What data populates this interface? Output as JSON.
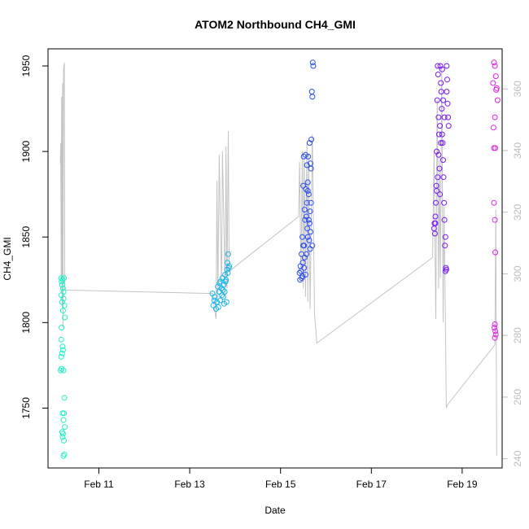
{
  "chart_data": {
    "type": "scatter",
    "title": "ATOM2 Northbound CH4_GMI",
    "xlabel": "Date",
    "ylabel": "CH4_GMI",
    "x_unit": "days since 2017-02-10",
    "xlim": [
      9.88,
      19.88
    ],
    "ylim": [
      1715,
      1960
    ],
    "x_ticks": [
      {
        "v": 11,
        "label": "Feb 11"
      },
      {
        "v": 13,
        "label": "Feb 13"
      },
      {
        "v": 15,
        "label": "Feb 15"
      },
      {
        "v": 17,
        "label": "Feb 17"
      },
      {
        "v": 19,
        "label": "Feb 19"
      }
    ],
    "y_ticks": [
      1750,
      1800,
      1850,
      1900,
      1950
    ],
    "y2lim": [
      237,
      373
    ],
    "y2_ticks": [
      240,
      260,
      280,
      300,
      320,
      340,
      360
    ],
    "grid": false,
    "series": [
      {
        "color": "#22f0c8",
        "points": [
          [
            10.17,
            1826
          ],
          [
            10.18,
            1824
          ],
          [
            10.19,
            1822
          ],
          [
            10.2,
            1825
          ],
          [
            10.21,
            1820
          ],
          [
            10.22,
            1818
          ],
          [
            10.23,
            1826
          ],
          [
            10.17,
            1816
          ],
          [
            10.19,
            1812
          ],
          [
            10.21,
            1807
          ],
          [
            10.22,
            1814
          ],
          [
            10.24,
            1810
          ],
          [
            10.25,
            1803
          ],
          [
            10.18,
            1797
          ],
          [
            10.17,
            1790
          ],
          [
            10.2,
            1786
          ],
          [
            10.19,
            1782
          ],
          [
            10.17,
            1780
          ],
          [
            10.21,
            1784
          ],
          [
            10.16,
            1772
          ],
          [
            10.18,
            1773
          ],
          [
            10.22,
            1772
          ],
          [
            10.24,
            1756
          ],
          [
            10.2,
            1747
          ],
          [
            10.23,
            1747
          ],
          [
            10.22,
            1743
          ],
          [
            10.25,
            1739
          ],
          [
            10.19,
            1736
          ],
          [
            10.21,
            1735
          ],
          [
            10.2,
            1733
          ],
          [
            10.23,
            1731
          ],
          [
            10.22,
            1722
          ],
          [
            10.24,
            1723
          ]
        ]
      },
      {
        "color": "#1ab3ea",
        "points": [
          [
            13.5,
            1817
          ],
          [
            13.55,
            1815
          ],
          [
            13.6,
            1812
          ],
          [
            13.62,
            1821
          ],
          [
            13.65,
            1818
          ],
          [
            13.68,
            1824
          ],
          [
            13.7,
            1820
          ],
          [
            13.72,
            1826
          ],
          [
            13.74,
            1815
          ],
          [
            13.75,
            1822
          ],
          [
            13.76,
            1811
          ],
          [
            13.78,
            1828
          ],
          [
            13.8,
            1825
          ],
          [
            13.82,
            1831
          ],
          [
            13.84,
            1829
          ],
          [
            13.85,
            1840
          ],
          [
            13.86,
            1832
          ],
          [
            13.52,
            1810
          ],
          [
            13.58,
            1808
          ],
          [
            13.63,
            1809
          ],
          [
            13.67,
            1813
          ],
          [
            13.71,
            1816
          ],
          [
            13.77,
            1818
          ],
          [
            13.81,
            1812
          ],
          [
            13.83,
            1835
          ],
          [
            13.87,
            1833
          ],
          [
            13.54,
            1813
          ],
          [
            13.66,
            1823
          ],
          [
            13.73,
            1819
          ],
          [
            13.79,
            1824
          ]
        ]
      },
      {
        "color": "#2a4ef0",
        "points": [
          [
            15.42,
            1829
          ],
          [
            15.43,
            1825
          ],
          [
            15.44,
            1833
          ],
          [
            15.46,
            1840
          ],
          [
            15.47,
            1826
          ],
          [
            15.48,
            1850
          ],
          [
            15.5,
            1880
          ],
          [
            15.51,
            1897
          ],
          [
            15.52,
            1845
          ],
          [
            15.53,
            1866
          ],
          [
            15.54,
            1860
          ],
          [
            15.55,
            1898
          ],
          [
            15.56,
            1878
          ],
          [
            15.57,
            1840
          ],
          [
            15.58,
            1870
          ],
          [
            15.59,
            1855
          ],
          [
            15.6,
            1882
          ],
          [
            15.61,
            1897
          ],
          [
            15.62,
            1860
          ],
          [
            15.63,
            1848
          ],
          [
            15.64,
            1905
          ],
          [
            15.65,
            1843
          ],
          [
            15.66,
            1893
          ],
          [
            15.67,
            1890
          ],
          [
            15.68,
            1907
          ],
          [
            15.69,
            1935
          ],
          [
            15.7,
            1932
          ],
          [
            15.71,
            1952
          ],
          [
            15.72,
            1950
          ],
          [
            15.45,
            1830
          ],
          [
            15.49,
            1835
          ],
          [
            15.55,
            1828
          ],
          [
            15.6,
            1850
          ],
          [
            15.65,
            1865
          ],
          [
            15.58,
            1892
          ],
          [
            15.62,
            1875
          ],
          [
            15.5,
            1845
          ],
          [
            15.53,
            1838
          ],
          [
            15.57,
            1862
          ],
          [
            15.64,
            1858
          ],
          [
            15.67,
            1870
          ],
          [
            15.7,
            1845
          ],
          [
            15.48,
            1827
          ],
          [
            15.52,
            1832
          ],
          [
            15.6,
            1877
          ],
          [
            15.66,
            1853
          ]
        ]
      },
      {
        "color": "#7a18f2",
        "points": [
          [
            18.38,
            1855
          ],
          [
            18.4,
            1852
          ],
          [
            18.41,
            1862
          ],
          [
            18.42,
            1870
          ],
          [
            18.43,
            1880
          ],
          [
            18.44,
            1900
          ],
          [
            18.45,
            1930
          ],
          [
            18.46,
            1950
          ],
          [
            18.47,
            1945
          ],
          [
            18.48,
            1920
          ],
          [
            18.49,
            1910
          ],
          [
            18.5,
            1890
          ],
          [
            18.51,
            1875
          ],
          [
            18.52,
            1950
          ],
          [
            18.53,
            1940
          ],
          [
            18.54,
            1935
          ],
          [
            18.55,
            1925
          ],
          [
            18.56,
            1910
          ],
          [
            18.57,
            1905
          ],
          [
            18.58,
            1895
          ],
          [
            18.59,
            1885
          ],
          [
            18.6,
            1870
          ],
          [
            18.61,
            1860
          ],
          [
            18.62,
            1845
          ],
          [
            18.63,
            1830
          ],
          [
            18.64,
            1832
          ],
          [
            18.65,
            1831
          ],
          [
            18.66,
            1950
          ],
          [
            18.67,
            1942
          ],
          [
            18.68,
            1928
          ],
          [
            18.69,
            1920
          ],
          [
            18.7,
            1915
          ],
          [
            18.39,
            1858
          ],
          [
            18.44,
            1877
          ],
          [
            18.48,
            1898
          ],
          [
            18.53,
            1905
          ],
          [
            18.58,
            1930
          ],
          [
            18.63,
            1850
          ],
          [
            18.41,
            1858
          ],
          [
            18.46,
            1885
          ],
          [
            18.51,
            1915
          ],
          [
            18.56,
            1948
          ],
          [
            18.61,
            1920
          ],
          [
            18.66,
            1935
          ]
        ]
      },
      {
        "color": "#e020e8",
        "points": [
          [
            19.68,
            1940
          ],
          [
            19.7,
            1952
          ],
          [
            19.72,
            1950
          ],
          [
            19.74,
            1944
          ],
          [
            19.76,
            1937
          ],
          [
            19.78,
            1930
          ],
          [
            19.72,
            1920
          ],
          [
            19.69,
            1914
          ],
          [
            19.7,
            1902
          ],
          [
            19.73,
            1902
          ],
          [
            19.7,
            1870
          ],
          [
            19.72,
            1860
          ],
          [
            19.73,
            1841
          ],
          [
            19.72,
            1791
          ],
          [
            19.71,
            1797
          ],
          [
            19.73,
            1795
          ],
          [
            19.74,
            1793
          ],
          [
            19.72,
            1799
          ],
          [
            19.75,
            1936
          ]
        ]
      }
    ],
    "secondary_series": {
      "color": "#c4c4c4",
      "points": [
        [
          10.15,
          1893
        ],
        [
          10.16,
          1905
        ],
        [
          10.17,
          1825
        ],
        [
          10.18,
          1932
        ],
        [
          10.19,
          1810
        ],
        [
          10.2,
          1940
        ],
        [
          10.21,
          1797
        ],
        [
          10.22,
          1948
        ],
        [
          10.24,
          1952
        ],
        [
          10.25,
          1819
        ],
        [
          13.5,
          1817
        ],
        [
          13.55,
          1807
        ],
        [
          13.58,
          1802
        ],
        [
          13.6,
          1883
        ],
        [
          13.62,
          1815
        ],
        [
          13.65,
          1898
        ],
        [
          13.7,
          1818
        ],
        [
          13.72,
          1900
        ],
        [
          13.78,
          1821
        ],
        [
          13.8,
          1903
        ],
        [
          13.82,
          1820
        ],
        [
          13.85,
          1912
        ],
        [
          13.87,
          1830
        ],
        [
          15.4,
          1862
        ],
        [
          15.42,
          1894
        ],
        [
          15.45,
          1828
        ],
        [
          15.48,
          1900
        ],
        [
          15.5,
          1820
        ],
        [
          15.52,
          1897
        ],
        [
          15.55,
          1815
        ],
        [
          15.58,
          1905
        ],
        [
          15.6,
          1812
        ],
        [
          15.62,
          1898
        ],
        [
          15.65,
          1808
        ],
        [
          15.7,
          1910
        ],
        [
          15.75,
          1805
        ],
        [
          15.8,
          1788
        ],
        [
          18.35,
          1838
        ],
        [
          18.38,
          1900
        ],
        [
          18.42,
          1802
        ],
        [
          18.45,
          1930
        ],
        [
          18.48,
          1820
        ],
        [
          18.5,
          1898
        ],
        [
          18.52,
          1826
        ],
        [
          18.55,
          1950
        ],
        [
          18.58,
          1800
        ],
        [
          18.6,
          1868
        ],
        [
          18.62,
          1826
        ],
        [
          18.65,
          1750
        ],
        [
          18.68,
          1752
        ],
        [
          19.72,
          1787
        ],
        [
          19.74,
          1866
        ],
        [
          19.76,
          1722
        ]
      ]
    }
  }
}
